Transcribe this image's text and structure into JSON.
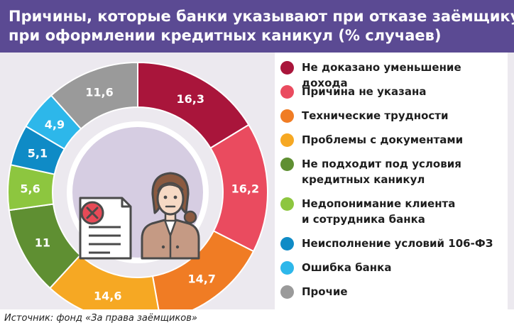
{
  "title": {
    "line1": "Причины, которые банки указывают при отказе заёмщику",
    "line2": "при оформлении кредитных каникул (% случаев)"
  },
  "source": "Источник: фонд «За права заёмщиков»",
  "chart_data": {
    "type": "pie",
    "title": "Причины, которые банки указывают при отказе заёмщику при оформлении кредитных каникул (% случаев)",
    "unit": "%",
    "slices": [
      {
        "label": "Не доказано уменьшение дохода",
        "value": 16.3,
        "value_text": "16,3",
        "color": "#a9153b"
      },
      {
        "label": "Причина не указана",
        "value": 16.2,
        "value_text": "16,2",
        "color": "#ea4b5f"
      },
      {
        "label": "Технические трудности",
        "value": 14.7,
        "value_text": "14,7",
        "color": "#f07c24"
      },
      {
        "label": "Проблемы с документами",
        "value": 14.6,
        "value_text": "14,6",
        "color": "#f6a823"
      },
      {
        "label": "Не подходит под условия кредитных каникул",
        "value": 11,
        "value_text": "11",
        "color": "#5f8f32"
      },
      {
        "label": "Недопонимание клиента и сотрудника банка",
        "value": 5.6,
        "value_text": "5,6",
        "color": "#8dc63f"
      },
      {
        "label": "Неисполнение условий 106-ФЗ",
        "value": 5.1,
        "value_text": "5,1",
        "color": "#0f8bc6"
      },
      {
        "label": "Ошибка банка",
        "value": 4.9,
        "value_text": "4,9",
        "color": "#2db7ea"
      },
      {
        "label": "Прочие",
        "value": 11.6,
        "value_text": "11,6",
        "color": "#9a9a9a"
      }
    ],
    "legend": {
      "placement": "right",
      "lines": [
        [
          "Не доказано уменьшение дохода"
        ],
        [
          "Причина не указана"
        ],
        [
          "Технические трудности"
        ],
        [
          "Проблемы с документами"
        ],
        [
          "Не подходит под условия",
          "кредитных каникул"
        ],
        [
          "Недопонимание клиента",
          "и сотрудника банка"
        ],
        [
          "Неисполнение условий 106-ФЗ"
        ],
        [
          "Ошибка банка"
        ],
        [
          "Прочие"
        ]
      ]
    }
  },
  "icons": {
    "illustration": "bank-employee-icon",
    "document": "rejected-document-icon"
  },
  "colors": {
    "header": "#5b4a93",
    "panel": "#ece9ef",
    "center": "#d6cde2"
  }
}
